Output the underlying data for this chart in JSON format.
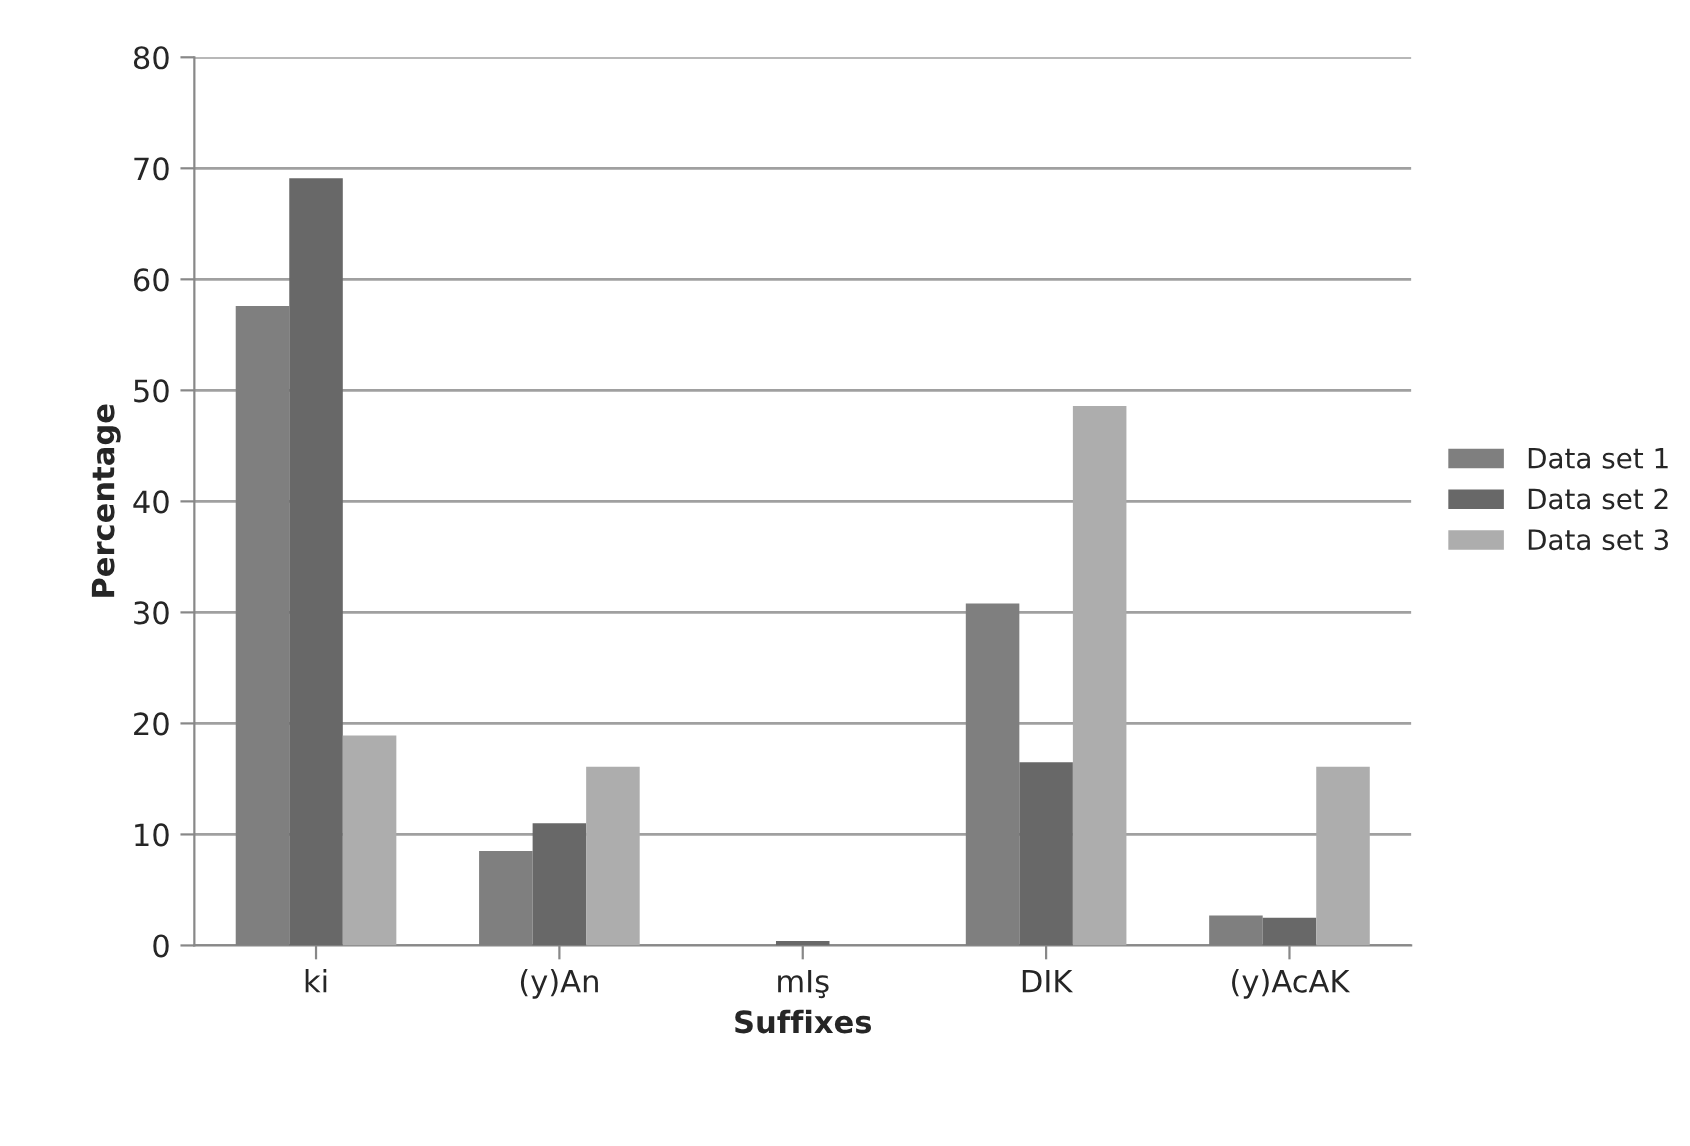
{
  "chart_data": {
    "type": "bar",
    "xlabel": "Suffixes",
    "ylabel": "Percentage",
    "categories": [
      "ki",
      "(y)An",
      "mIş",
      "DIK",
      "(y)AcAK"
    ],
    "series": [
      {
        "name": "Data set 1",
        "color": "#7f7f7f",
        "values": [
          57.6,
          8.5,
          0,
          30.8,
          2.7
        ]
      },
      {
        "name": "Data set 2",
        "color": "#686868",
        "values": [
          69.1,
          11.0,
          0.4,
          16.5,
          2.5
        ]
      },
      {
        "name": "Data set 3",
        "color": "#adadad",
        "values": [
          18.9,
          16.1,
          0,
          48.6,
          16.1
        ]
      }
    ],
    "ylim": [
      0,
      80
    ],
    "yticks": [
      0,
      10,
      20,
      30,
      40,
      50,
      60,
      70,
      80
    ],
    "grid": "y",
    "legend": "right"
  }
}
